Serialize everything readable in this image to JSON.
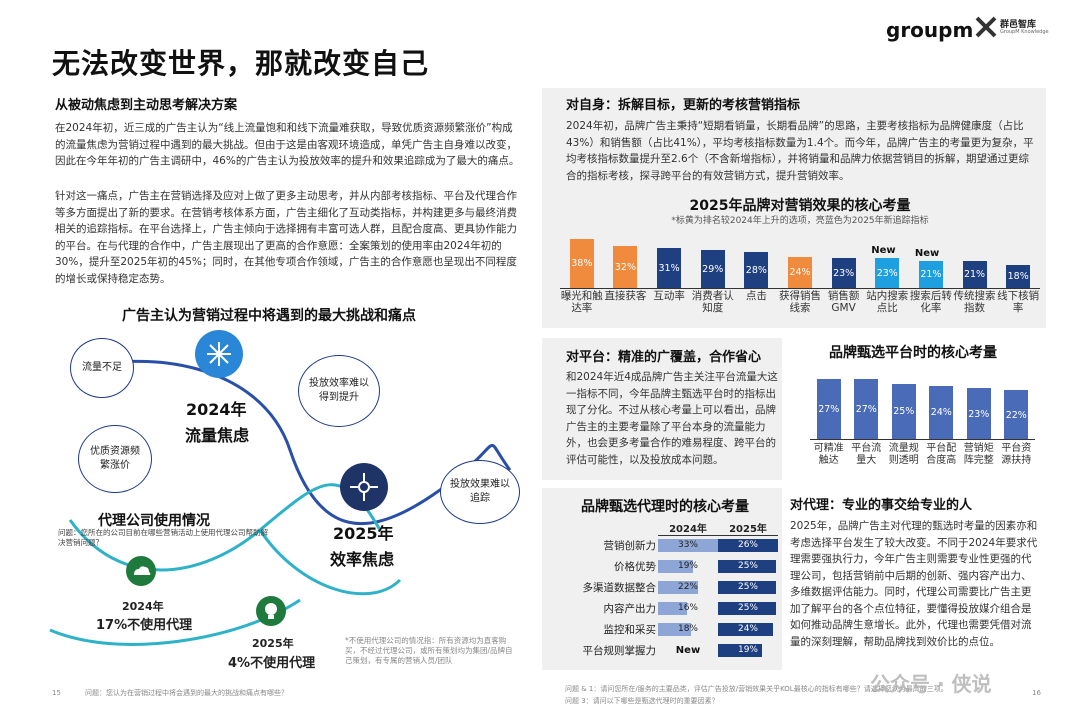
{
  "header": {
    "title": "无法改变世界，那就改变自己",
    "logo_left": "groupm",
    "logo_right": "群邑智库",
    "logo_right_sub": "GroupM Knowledge"
  },
  "left": {
    "section_title": "从被动焦虑到主动思考解决方案",
    "para1": "在2024年初，近三成的广告主认为“线上流量饱和和线下流量难获取，导致优质资源频繁涨价”构成的流量焦虑为营销过程中遇到的最大挑战。但由于这是由客观环境造成，单凭广告主自身难以改变，因此在今年年初的广告主调研中，46%的广告主认为投放效率的提升和效果追踪成为了最大的痛点。",
    "para2": "针对这一痛点，广告主在营销选择及应对上做了更多主动思考，并从内部考核指标、平台及代理合作等多方面提出了新的要求。在营销考核体系方面，广告主细化了互动类指标，并构建更多与最终消费相关的追踪指标。在平台选择上，广告主倾向于选择拥有丰富可选人群，且配合度高、更具协作能力的平台。在与代理的合作中，广告主展现出了更高的合作意愿：全案策划的使用率由2024年初的30%，提升至2025年初的45%；同时，在其他专项合作领域，广告主的合作意愿也呈现出不同程度的增长或保持稳定态势。",
    "diagram_title": "广告主认为营销过程中将遇到的最大挑战和痛点",
    "bubbles": [
      "流量不足",
      "优质资源频繁涨价",
      "投放效率难以得到提升",
      "投放效果难以追踪"
    ],
    "year2024": "2024年",
    "focus2024": "流量焦虑",
    "year2025": "2025年",
    "focus2025": "效率焦虑",
    "agency_title": "代理公司使用情况",
    "agency_question": "问题：您所在的公司目前在哪些营销活动上使用代理公司帮助解决营销问题？",
    "agency2024_year": "2024年",
    "agency2024_text": "17%不使用代理",
    "agency2025_year": "2025年",
    "agency2025_text": "4%不使用代理",
    "agency_note": "*不使用代理公司的情况指：所有资源均为直客购买，不经过代理公司，或所有策划均为集团/品牌自己策划，有专属的营销人员/团队",
    "footer_page": "15",
    "footer_q": "问题：您认为在营销过程中将会遇到的最大的挑战和痛点有哪些？"
  },
  "right": {
    "self_title": "对自身：拆解目标，更新的考核营销指标",
    "self_para": "2024年初，品牌广告主秉持“短期看销量，长期看品牌”的思路，主要考核指标为品牌健康度（占比43%）和销售额（占比41%），平均考核指标数量为1.4个。而今年，品牌广告主的考量更为复杂，平均考核指标数量提升至2.6个（不含新增指标），并将销量和品牌力依据营销目的拆解，期望通过更综合的指标考核，探寻跨平台的有效营销方式，提升营销效率。",
    "platform_title": "对平台：精准的广覆盖，合作省心",
    "platform_para": "和2024年近4成品牌广告主关注平台流量大这一指标不同，今年品牌主甄选平台时的指标出现了分化。不过从核心考量上可以看出，品牌广告主的主要考量除了平台本身的流量能力外，也会更多考量合作的难易程度、跨平台的评估可能性，以及投放成本问题。",
    "agency_title": "对代理：专业的事交给专业的人",
    "agency_para": "2025年，品牌广告主对代理的甄选时考量的因素亦和考虑选择平台发生了较大改变。不同于2024年要求代理需要强执行力，今年广告主则需要专业性更强的代理公司，包括营销前中后期的创新、强内容产出力、多维数据评估能力。同时，代理公司需要比广告主更加了解平台的各个点位特征，要懂得投放媒介组合是如何推动品牌生意增长。此外，代理也需要凭借对流量的深刻理解，帮助品牌找到效价比的点位。",
    "footer_page": "16",
    "footer_q1": "问题 & 1：请问您所在/服务的主要品类，评估广告投放/营销效果关乎KOL最核心的指标有哪些？请选择您认为最高的三项。",
    "footer_q2": "问题 3：请问以下哪些是甄选代理时的重要因素？",
    "watermark": "公众号 · 侠说"
  },
  "chart_data": [
    {
      "type": "bar",
      "title": "2025年品牌对营销效果的核心考量",
      "subtitle": "*标黄为排名较2024年上升的选项，亮蓝色为2025年新追踪指标",
      "categories": [
        "曝光和触达率",
        "直接获客",
        "互动率",
        "消费者认知度",
        "点击",
        "获得销售线索",
        "销售额GMV",
        "站内搜索点比",
        "搜索后转化率",
        "传统搜索指数",
        "线下核销率"
      ],
      "values": [
        38,
        32,
        31,
        29,
        28,
        24,
        23,
        23,
        21,
        21,
        18
      ],
      "value_labels": [
        "38%",
        "32%",
        "31%",
        "29%",
        "28%",
        "24%",
        "23%",
        "23%",
        "21%",
        "21%",
        "18%"
      ],
      "colors": [
        "#f08a3c",
        "#f08a3c",
        "#1e3f80",
        "#1e3f80",
        "#1e3f80",
        "#f08a3c",
        "#1e3f80",
        "#1e9fe0",
        "#1e9fe0",
        "#1e3f80",
        "#1e3f80"
      ],
      "new_flags": [
        "",
        "",
        "",
        "",
        "",
        "",
        "",
        "New",
        "New",
        "",
        ""
      ]
    },
    {
      "type": "bar",
      "title": "品牌甄选平台时的核心考量",
      "categories": [
        "可精准触达",
        "平台流量大",
        "流量规则透明",
        "平台配合度高",
        "营销矩阵完整",
        "平台资源扶持"
      ],
      "values": [
        27,
        27,
        25,
        24,
        23,
        22
      ],
      "value_labels": [
        "27%",
        "27%",
        "25%",
        "24%",
        "23%",
        "22%"
      ],
      "color": "#4a6bb8"
    },
    {
      "type": "table",
      "title": "品牌甄选代理时的核心考量",
      "columns": [
        "2024年",
        "2025年"
      ],
      "rows": [
        {
          "label": "营销创新力",
          "v2024": "33%",
          "v2025": "26%",
          "n2024": 33,
          "n2025": 26
        },
        {
          "label": "价格优势",
          "v2024": "19%",
          "v2025": "25%",
          "n2024": 19,
          "n2025": 25
        },
        {
          "label": "多渠道数据整合",
          "v2024": "22%",
          "v2025": "25%",
          "n2024": 22,
          "n2025": 25
        },
        {
          "label": "内容产出力",
          "v2024": "16%",
          "v2025": "25%",
          "n2024": 16,
          "n2025": 25
        },
        {
          "label": "监控和采买",
          "v2024": "18%",
          "v2025": "24%",
          "n2024": 18,
          "n2025": 24
        },
        {
          "label": "平台规则掌握力",
          "v2024": "New",
          "v2025": "19%",
          "n2024": 0,
          "n2025": 19
        }
      ]
    }
  ]
}
